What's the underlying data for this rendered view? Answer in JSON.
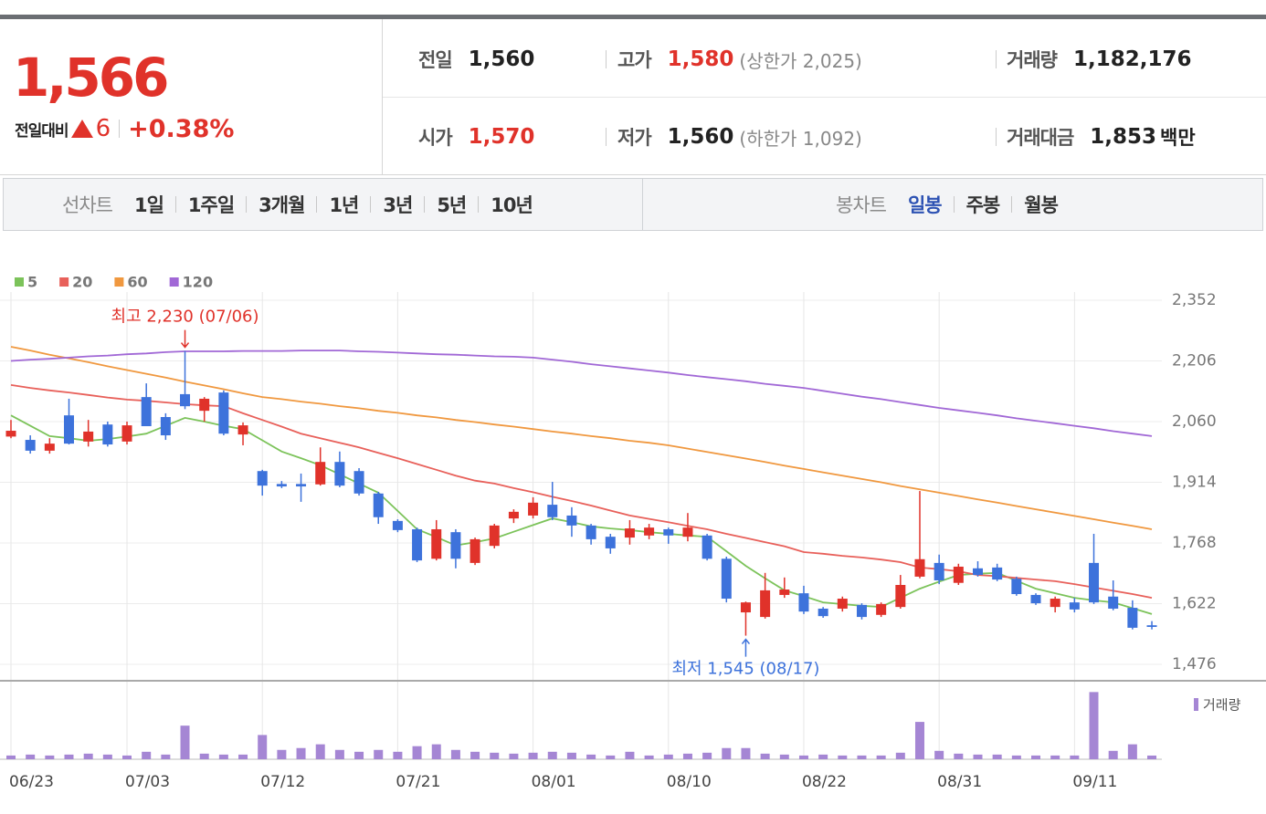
{
  "quote": {
    "price": "1,566",
    "change_label": "전일대비",
    "change": "6",
    "change_pct": "+0.38%"
  },
  "stats": [
    {
      "label": "전일",
      "value": "1,560"
    },
    {
      "label": "고가",
      "value": "1,580",
      "note_label": "(상한가",
      "note_value": "2,025)"
    },
    {
      "label": "거래량",
      "value": "1,182,176"
    },
    {
      "label": "시가",
      "value": "1,570"
    },
    {
      "label": "저가",
      "value": "1,560",
      "note_label": "(하한가",
      "note_value": "1,092)"
    },
    {
      "label": "거래대금",
      "value": "1,853",
      "unit": "백만"
    }
  ],
  "tabs": {
    "line_label": "선차트",
    "line": [
      "1일",
      "1주일",
      "3개월",
      "1년",
      "3년",
      "5년",
      "10년"
    ],
    "candle_label": "봉차트",
    "candle": [
      "일봉",
      "주봉",
      "월봉"
    ],
    "candle_selected": 0
  },
  "chart_data": {
    "type": "candlestick",
    "categories": [
      "06/23",
      null,
      null,
      null,
      null,
      null,
      "07/03",
      null,
      null,
      null,
      null,
      null,
      null,
      "07/12",
      null,
      null,
      null,
      null,
      null,
      null,
      "07/21",
      null,
      null,
      null,
      null,
      null,
      null,
      "08/01",
      null,
      null,
      null,
      null,
      null,
      null,
      "08/10",
      null,
      null,
      null,
      null,
      null,
      null,
      "08/22",
      null,
      null,
      null,
      null,
      null,
      null,
      "08/31",
      null,
      null,
      null,
      null,
      null,
      null,
      "09/11",
      null,
      null,
      null,
      null
    ],
    "open": [
      2024,
      2016,
      1990,
      2075,
      2012,
      2053,
      2012,
      2119,
      2071,
      2126,
      2086,
      2130,
      2029,
      1941,
      1910,
      1910,
      1909,
      1963,
      1941,
      1887,
      1821,
      1801,
      1730,
      1794,
      1720,
      1761,
      1827,
      1834,
      1860,
      1834,
      1810,
      1783,
      1781,
      1786,
      1801,
      1783,
      1786,
      1730,
      1601,
      1590,
      1643,
      1647,
      1610,
      1610,
      1619,
      1595,
      1614,
      1687,
      1720,
      1672,
      1707,
      1709,
      1682,
      1643,
      1614,
      1625,
      1720,
      1639,
      1612,
      1570
    ],
    "high": [
      2064,
      2027,
      2020,
      2115,
      2064,
      2060,
      2060,
      2152,
      2080,
      2230,
      2119,
      2135,
      2058,
      1944,
      1917,
      1935,
      1998,
      1988,
      1948,
      1891,
      1825,
      1805,
      1823,
      1801,
      1781,
      1814,
      1849,
      1878,
      1915,
      1854,
      1814,
      1790,
      1823,
      1814,
      1805,
      1840,
      1790,
      1735,
      1627,
      1696,
      1685,
      1665,
      1614,
      1639,
      1623,
      1625,
      1691,
      1893,
      1740,
      1718,
      1724,
      1718,
      1687,
      1647,
      1639,
      1636,
      1790,
      1678,
      1630,
      1580
    ],
    "low": [
      2020,
      1983,
      1983,
      2005,
      2000,
      2000,
      2005,
      2049,
      2016,
      2090,
      2060,
      2027,
      2003,
      1882,
      1900,
      1867,
      1906,
      1902,
      1882,
      1814,
      1794,
      1722,
      1726,
      1707,
      1715,
      1755,
      1816,
      1827,
      1823,
      1783,
      1764,
      1742,
      1764,
      1777,
      1766,
      1772,
      1726,
      1625,
      1545,
      1586,
      1636,
      1597,
      1588,
      1603,
      1584,
      1590,
      1610,
      1683,
      1669,
      1667,
      1687,
      1676,
      1641,
      1619,
      1601,
      1601,
      1621,
      1606,
      1560,
      1560
    ],
    "close": [
      2038,
      1990,
      2007,
      2007,
      2036,
      2005,
      2051,
      2049,
      2027,
      2097,
      2115,
      2031,
      2051,
      1906,
      1904,
      1904,
      1963,
      1906,
      1887,
      1830,
      1799,
      1726,
      1801,
      1730,
      1777,
      1810,
      1843,
      1865,
      1830,
      1810,
      1777,
      1755,
      1803,
      1805,
      1786,
      1805,
      1730,
      1634,
      1625,
      1654,
      1656,
      1603,
      1592,
      1634,
      1590,
      1621,
      1667,
      1729,
      1678,
      1711,
      1691,
      1680,
      1645,
      1623,
      1634,
      1608,
      1625,
      1610,
      1564,
      1566
    ],
    "up_color": "#e0322a",
    "down_color": "#3d72db",
    "ylim": [
      1476,
      2352
    ],
    "yticks": [
      {
        "value": 2352,
        "label": "2,352"
      },
      {
        "value": 2206,
        "label": "2,206"
      },
      {
        "value": 2060,
        "label": "2,060"
      },
      {
        "value": 1914,
        "label": "1,914"
      },
      {
        "value": 1768,
        "label": "1,768"
      },
      {
        "value": 1622,
        "label": "1,622"
      },
      {
        "value": 1476,
        "label": "1,476"
      }
    ],
    "grid": true,
    "max_label": "최고 2,230 (07/06)",
    "min_label": "최저 1,545 (08/17)",
    "moving_averages": [
      {
        "name": "5",
        "color": "#7cc35a",
        "values": [
          2075,
          2050,
          2025,
          2020,
          2014,
          2018,
          2024,
          2031,
          2050,
          2069,
          2060,
          2050,
          2042,
          2015,
          1988,
          1972,
          1955,
          1933,
          1911,
          1889,
          1845,
          1801,
          1782,
          1762,
          1770,
          1779,
          1795,
          1811,
          1827,
          1818,
          1808,
          1803,
          1799,
          1794,
          1790,
          1786,
          1783,
          1748,
          1713,
          1683,
          1654,
          1640,
          1625,
          1621,
          1617,
          1614,
          1636,
          1658,
          1675,
          1691,
          1694,
          1696,
          1677,
          1658,
          1647,
          1636,
          1630,
          1625,
          1611,
          1597
        ]
      },
      {
        "name": "20",
        "color": "#e8605a",
        "values": [
          2148,
          2141,
          2135,
          2130,
          2124,
          2118,
          2113,
          2110,
          2106,
          2102,
          2099,
          2097,
          2080,
          2064,
          2048,
          2031,
          2020,
          2009,
          1998,
          1985,
          1972,
          1958,
          1944,
          1930,
          1918,
          1911,
          1900,
          1890,
          1879,
          1869,
          1858,
          1846,
          1834,
          1826,
          1818,
          1809,
          1801,
          1790,
          1780,
          1770,
          1760,
          1746,
          1742,
          1737,
          1733,
          1728,
          1722,
          1709,
          1705,
          1700,
          1691,
          1688,
          1684,
          1680,
          1676,
          1669,
          1661,
          1653,
          1645,
          1636
        ]
      },
      {
        "name": "60",
        "color": "#f0983f",
        "values": [
          2240,
          2231,
          2221,
          2212,
          2203,
          2193,
          2184,
          2175,
          2166,
          2156,
          2147,
          2138,
          2128,
          2119,
          2114,
          2108,
          2103,
          2097,
          2092,
          2086,
          2081,
          2075,
          2070,
          2064,
          2059,
          2053,
          2048,
          2042,
          2036,
          2031,
          2025,
          2020,
          2014,
          2009,
          2003,
          1995,
          1987,
          1979,
          1971,
          1963,
          1954,
          1946,
          1938,
          1930,
          1922,
          1914,
          1905,
          1897,
          1889,
          1881,
          1873,
          1865,
          1857,
          1849,
          1841,
          1833,
          1825,
          1817,
          1809,
          1801
        ]
      },
      {
        "name": "120",
        "color": "#a168d6",
        "values": [
          2206,
          2209,
          2211,
          2214,
          2217,
          2219,
          2222,
          2224,
          2227,
          2229,
          2229,
          2229,
          2230,
          2230,
          2230,
          2231,
          2231,
          2231,
          2229,
          2228,
          2226,
          2224,
          2222,
          2221,
          2219,
          2217,
          2216,
          2214,
          2209,
          2204,
          2198,
          2193,
          2188,
          2183,
          2178,
          2172,
          2167,
          2162,
          2157,
          2151,
          2146,
          2141,
          2134,
          2127,
          2120,
          2114,
          2107,
          2100,
          2093,
          2087,
          2081,
          2075,
          2068,
          2062,
          2056,
          2050,
          2044,
          2037,
          2031,
          2025
        ]
      }
    ],
    "volume": {
      "name": "거래량",
      "color": "#a586d4",
      "ylim": [
        0,
        22000000
      ],
      "values": [
        1200000,
        1500000,
        1200000,
        1500000,
        1800000,
        1500000,
        1200000,
        2400000,
        1500000,
        10800000,
        1800000,
        1500000,
        1500000,
        7800000,
        3000000,
        3600000,
        4800000,
        3000000,
        2400000,
        3000000,
        2400000,
        4200000,
        4800000,
        3000000,
        2400000,
        2100000,
        1800000,
        2100000,
        2400000,
        2100000,
        1500000,
        1200000,
        2400000,
        1200000,
        1500000,
        1800000,
        2100000,
        3600000,
        3600000,
        1800000,
        1500000,
        1200000,
        1500000,
        1200000,
        1200000,
        1200000,
        2100000,
        12000000,
        2700000,
        1800000,
        1500000,
        1500000,
        1200000,
        1200000,
        1200000,
        1200000,
        21600000,
        2700000,
        4800000,
        1182176
      ]
    }
  }
}
